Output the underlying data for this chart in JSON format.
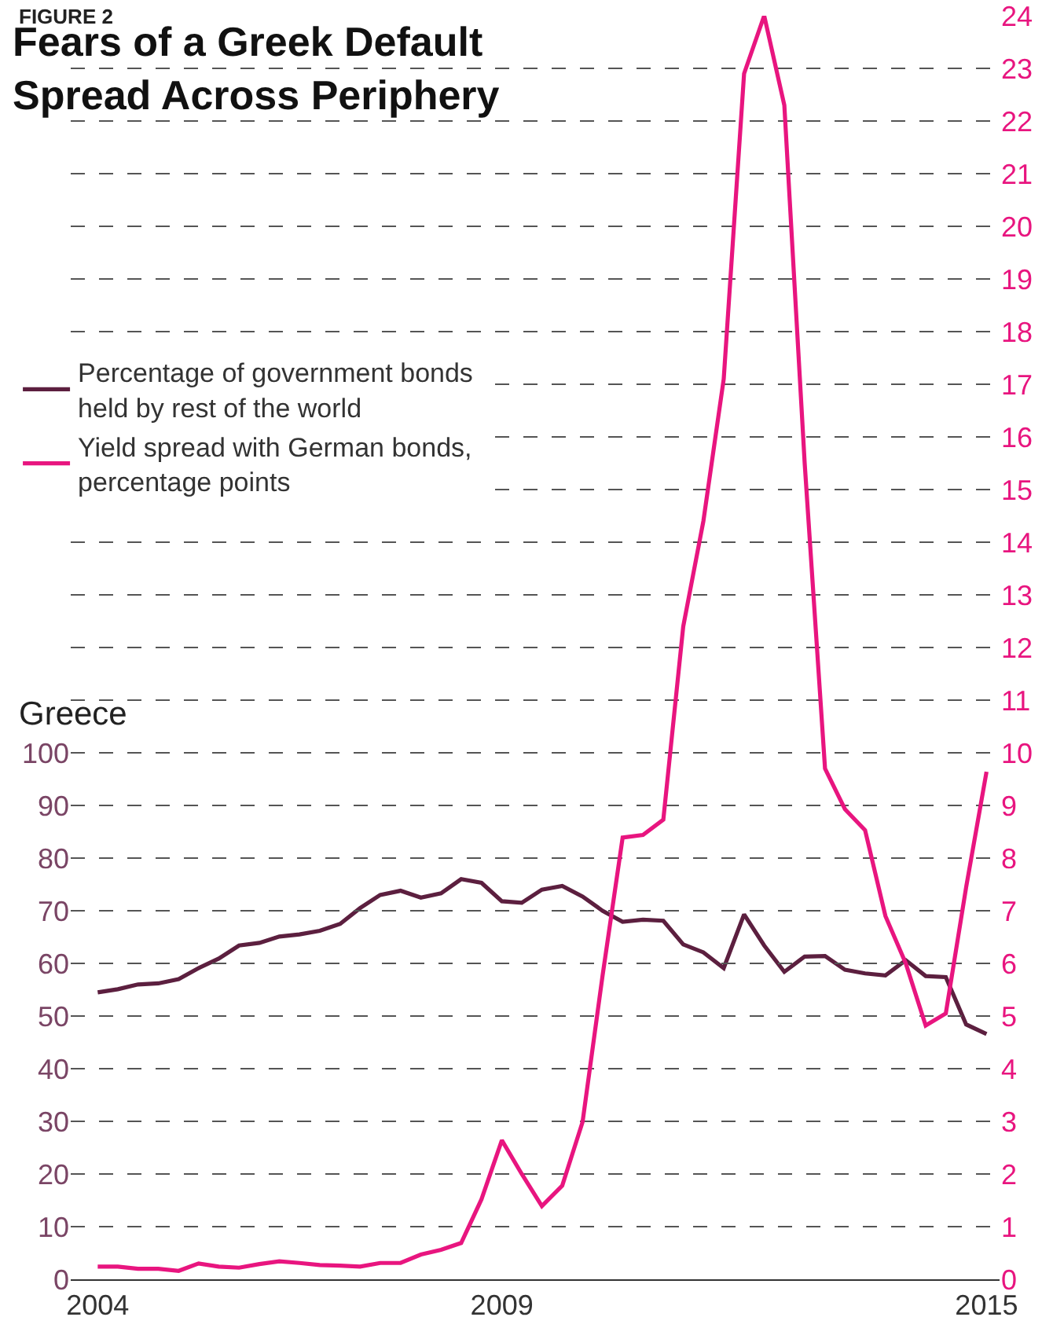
{
  "chart_data": {
    "type": "line",
    "title": "Fears of a Greek Default Spread Across Periphery",
    "ylabel": "Greece",
    "annotations": [
      "FIGURE 2"
    ],
    "x": [
      "2004-01",
      "2004-04",
      "2004-07",
      "2004-10",
      "2005-01",
      "2005-04",
      "2005-07",
      "2005-10",
      "2006-01",
      "2006-04",
      "2006-07",
      "2006-10",
      "2007-01",
      "2007-04",
      "2007-07",
      "2007-10",
      "2008-01",
      "2008-04",
      "2008-07",
      "2008-10",
      "2009-01",
      "2009-04",
      "2009-07",
      "2009-10",
      "2010-01",
      "2010-04",
      "2010-07",
      "2010-10",
      "2011-01",
      "2011-04",
      "2011-07",
      "2011-10",
      "2012-01",
      "2012-04",
      "2012-07",
      "2012-10",
      "2013-01",
      "2013-04",
      "2013-07",
      "2013-10",
      "2014-01",
      "2014-04",
      "2014-07",
      "2014-10",
      "2015-01"
    ],
    "series": [
      {
        "name": "Percentage of government bonds held by rest of the world",
        "color": "#5c1f3f",
        "values": [
          54.5,
          55.1,
          56,
          56.2,
          57,
          59.1,
          60.9,
          63.4,
          63.9,
          65.1,
          65.5,
          66.2,
          67.5,
          70.5,
          73,
          73.8,
          72.5,
          73.3,
          76,
          75.3,
          71.8,
          71.5,
          74,
          74.7,
          72.7,
          70,
          67.9,
          68.3,
          68.1,
          63.6,
          62.1,
          59.1,
          69.3,
          63.4,
          58.4,
          61.3,
          61.4,
          58.8,
          58.1,
          57.7,
          60.6,
          57.6,
          57.4,
          48.4,
          46.6
        ]
      },
      {
        "name": "Yield spread with German bonds, percentage points",
        "color": "#e8157f",
        "axis": "y2",
        "values": [
          0.24,
          0.24,
          0.2,
          0.2,
          0.16,
          0.3,
          0.24,
          0.22,
          0.29,
          0.34,
          0.31,
          0.27,
          0.26,
          0.24,
          0.31,
          0.31,
          0.47,
          0.56,
          0.69,
          1.52,
          2.64,
          2.0,
          1.39,
          1.78,
          2.99,
          5.76,
          8.39,
          8.44,
          8.73,
          12.4,
          14.4,
          17.1,
          22.9,
          24.0,
          22.3,
          15.5,
          9.7,
          8.93,
          8.53,
          6.9,
          6.0,
          4.82,
          5.05,
          7.45,
          9.64
        ]
      }
    ],
    "xlim": [
      "2003-09-01",
      "2015-03-01"
    ],
    "xticks": [
      {
        "value": "2004-01-01",
        "label": "2004"
      },
      {
        "value": "2009-01-01",
        "label": "2009"
      },
      {
        "value": "2015-01-01",
        "label": "2015"
      }
    ],
    "ylim": [
      0,
      100
    ],
    "yticks": [
      0,
      10,
      20,
      30,
      40,
      50,
      60,
      70,
      80,
      90,
      100
    ],
    "y2lim": [
      0,
      24
    ],
    "y2ticks": [
      0,
      1,
      2,
      3,
      4,
      5,
      6,
      7,
      8,
      9,
      10,
      11,
      12,
      13,
      14,
      15,
      16,
      17,
      18,
      19,
      20,
      21,
      22,
      23,
      24
    ],
    "grid": "y",
    "legend": "top left",
    "line_style": "solid",
    "marker": "none"
  }
}
